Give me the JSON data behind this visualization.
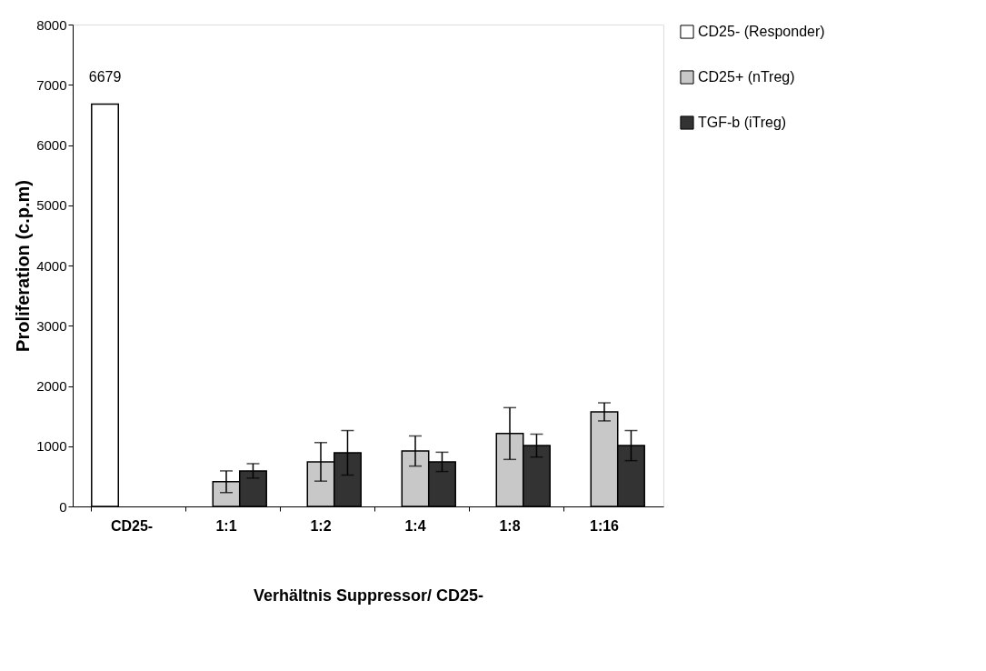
{
  "chart_data": {
    "type": "bar",
    "xlabel": "Verhältnis Suppressor/ CD25-",
    "ylabel": "Proliferation (c.p.m)",
    "categories": [
      "CD25-",
      "1:1",
      "1:2",
      "1:4",
      "1:8",
      "1:16"
    ],
    "series": [
      {
        "name": "CD25- (Responder)",
        "color": "#ffffff",
        "values": [
          6679,
          null,
          null,
          null,
          null,
          null
        ],
        "value_labels": [
          "6679",
          null,
          null,
          null,
          null,
          null
        ]
      },
      {
        "name": "CD25+ (nTreg)",
        "color": "#c8c8c8",
        "values": [
          null,
          410,
          740,
          920,
          1210,
          1570
        ],
        "errors": [
          null,
          180,
          320,
          250,
          430,
          150
        ]
      },
      {
        "name": "TGF-b (iTreg)",
        "color": "#333333",
        "values": [
          null,
          590,
          890,
          740,
          1010,
          1010
        ],
        "errors": [
          null,
          120,
          370,
          160,
          190,
          250
        ]
      }
    ],
    "ylim": [
      0,
      8000
    ],
    "yticks": [
      0,
      1000,
      2000,
      3000,
      4000,
      5000,
      6000,
      7000,
      8000
    ],
    "grid": false,
    "legend": "right"
  }
}
